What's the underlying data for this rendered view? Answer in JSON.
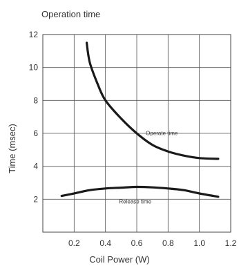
{
  "chart_data": {
    "type": "line",
    "title": "Operation time",
    "xlabel": "Coil Power (W)",
    "ylabel": "Time (msec)",
    "xlim": [
      0,
      1.2
    ],
    "ylim": [
      0,
      12
    ],
    "xticks": [
      "0.2",
      "0.4",
      "0.6",
      "0.8",
      "1.0",
      "1.2"
    ],
    "yticks": [
      "2",
      "4",
      "6",
      "8",
      "10",
      "12"
    ],
    "grid": true,
    "annotations": [
      {
        "text": "Operate time",
        "x": 0.76,
        "y": 5.9
      },
      {
        "text": "Release time",
        "x": 0.59,
        "y": 1.75
      }
    ],
    "series": [
      {
        "key": "operate",
        "x": [
          0.28,
          0.3,
          0.35,
          0.4,
          0.5,
          0.6,
          0.7,
          0.8,
          0.9,
          1.0,
          1.12
        ],
        "y": [
          11.5,
          10.3,
          9.0,
          8.0,
          6.9,
          6.0,
          5.3,
          4.9,
          4.65,
          4.5,
          4.45
        ]
      },
      {
        "key": "release",
        "x": [
          0.12,
          0.2,
          0.3,
          0.4,
          0.5,
          0.6,
          0.7,
          0.8,
          0.9,
          1.0,
          1.12
        ],
        "y": [
          2.2,
          2.35,
          2.55,
          2.65,
          2.7,
          2.75,
          2.72,
          2.65,
          2.55,
          2.35,
          2.15
        ]
      }
    ]
  }
}
